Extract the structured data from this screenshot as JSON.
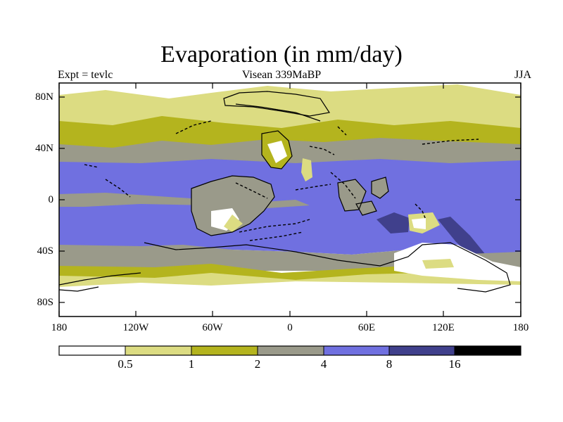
{
  "title": "Evaporation (in mm/day)",
  "left_label": "Expt = tevlc",
  "center_label": "Visean 339MaBP",
  "right_label": "JJA",
  "lat_labels": [
    "80N",
    "40N",
    "0",
    "40S",
    "80S"
  ],
  "lon_labels": [
    "180",
    "120W",
    "60W",
    "0",
    "60E",
    "120E",
    "180"
  ],
  "colorbar": {
    "labels": [
      "0.5",
      "1",
      "2",
      "4",
      "8",
      "16"
    ],
    "colors": [
      "#ffffff",
      "#dcdc82",
      "#b4b41e",
      "#9a9a8a",
      "#7070e0",
      "#40408c",
      "#000000"
    ]
  }
}
